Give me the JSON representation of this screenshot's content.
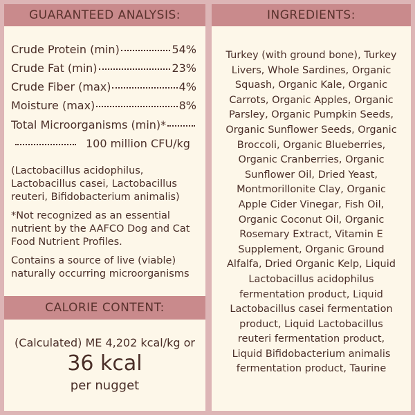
{
  "analysis": {
    "title": "GUARANTEED ANALYSIS:",
    "rows": [
      {
        "label": "Crude Protein (min)",
        "value": "54%"
      },
      {
        "label": "Crude Fat (min)",
        "value": "23%"
      },
      {
        "label": "Crude Fiber (max)",
        "value": "4%"
      },
      {
        "label": "Moisture (max)",
        "value": "8%"
      },
      {
        "label": "Total Microorganisms (min)*",
        "value": "100 million CFU/kg"
      }
    ],
    "notes": [
      "(Lactobacillus acidophilus, Lactobacillus casei, Lactobacillus reuteri, Bifidobacterium animalis)",
      "*Not recognized as an essential nutrient by the AAFCO Dog and Cat Food Nutrient Profiles.",
      "Contains a source of live (viable) naturally occurring microorganisms"
    ]
  },
  "calorie": {
    "title": "CALORIE CONTENT:",
    "line": "(Calculated) ME 4,202 kcal/kg or",
    "big": "36 kcal",
    "unit": "per nugget"
  },
  "ingredients": {
    "title": "INGREDIENTS:",
    "lines": [
      "Turkey (with ground bone), Turkey",
      "Livers,  Whole Sardines, Organic",
      "Squash, Organic Kale, Organic",
      "Carrots, Organic Apples, Organic",
      "Parsley, Organic Pumpkin Seeds,",
      "Organic Sunflower Seeds, Organic",
      "Broccoli, Organic Blueberries,",
      "Organic Cranberries, Organic",
      "Sunflower Oil, Dried Yeast,",
      "Montmorillonite Clay, Organic",
      "Apple Cider Vinegar, Fish Oil,",
      "Organic Coconut Oil, Organic",
      "Rosemary Extract, Vitamin E",
      "Supplement, Organic Ground",
      "Alfalfa, Dried Organic Kelp, Liquid",
      "Lactobacillus acidophilus",
      "fermentation product, Liquid",
      "Lactobacillus casei fermentation",
      "product, Liquid Lactobacillus",
      "reuteri fermentation product,",
      "Liquid Bifidobacterium animalis",
      "fermentation product, Taurine"
    ]
  }
}
